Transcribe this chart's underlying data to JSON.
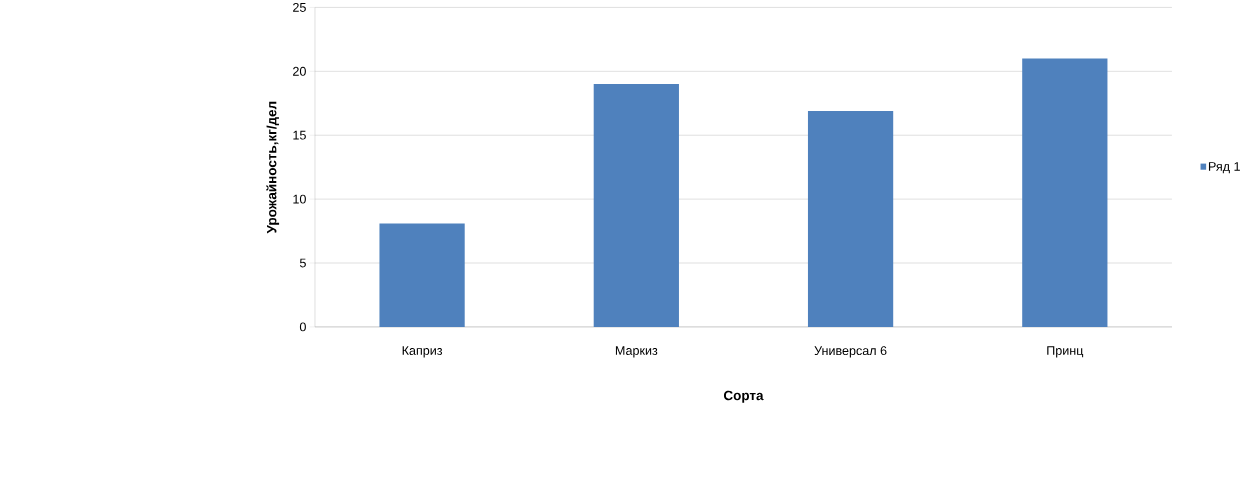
{
  "chart_data": {
    "type": "bar",
    "xlabel": "Сорта",
    "ylabel": "Урожайность,кг/дел",
    "categories": [
      "Каприз",
      "Маркиз",
      "Универсал 6",
      "Принц"
    ],
    "series": [
      {
        "name": "Ряд 1",
        "color": "#4f81bd",
        "values": [
          8.1,
          19,
          16.9,
          21
        ]
      }
    ],
    "ylim": [
      0,
      25
    ],
    "yticks": [
      0,
      5,
      10,
      15,
      20,
      25
    ],
    "grid": "y",
    "legend": "right"
  }
}
